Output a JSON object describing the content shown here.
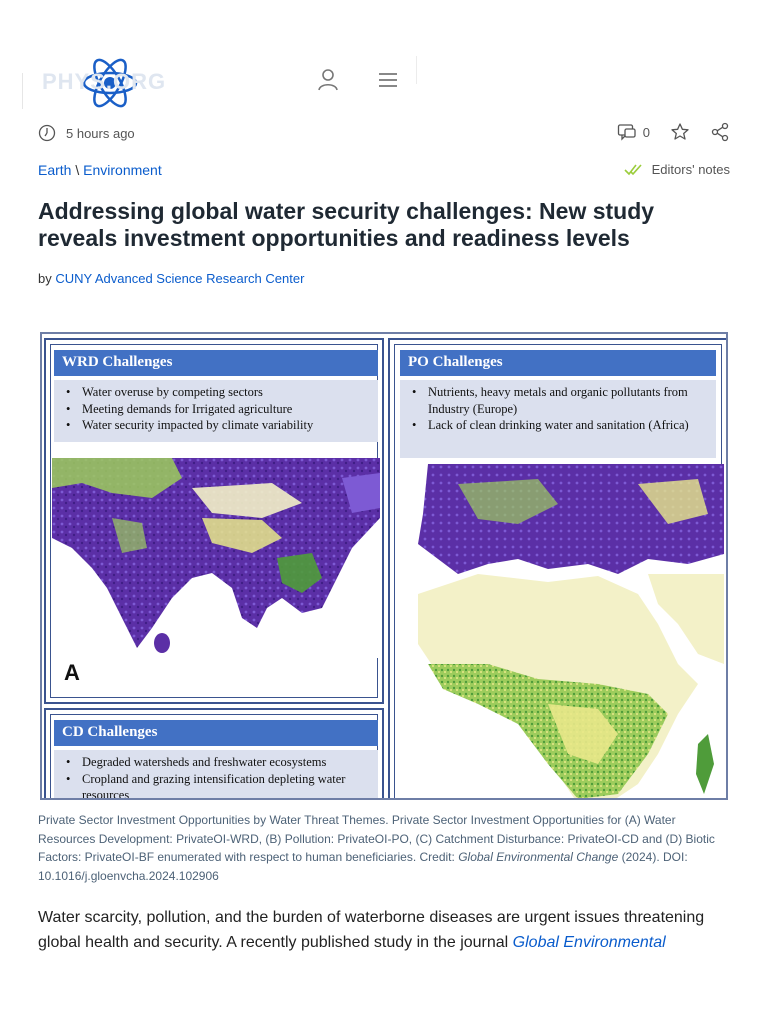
{
  "header": {
    "logo_text": "PHYS.ORG",
    "icons": [
      "user-icon",
      "menu-icon"
    ]
  },
  "meta": {
    "time": "5 hours ago",
    "comments_count": "0",
    "icons": [
      "clock-icon",
      "comment-icon",
      "star-icon",
      "share-icon"
    ]
  },
  "breadcrumb": {
    "category": "Earth",
    "separator": "\\",
    "subcategory": "Environment"
  },
  "editors_notes": "Editors' notes",
  "article": {
    "title": "Addressing global water security challenges: New study reveals investment opportunities and readiness levels",
    "by_label": "by",
    "author": "CUNY Advanced Science Research Center"
  },
  "figure": {
    "panels": [
      {
        "heading": "WRD Challenges",
        "items": [
          "Water overuse by competing sectors",
          "Meeting demands for Irrigated agriculture",
          "Water security impacted by climate variability"
        ],
        "letter": "A"
      },
      {
        "heading": "PO Challenges",
        "items": [
          "Nutrients, heavy metals and organic pollutants from Industry (Europe)",
          "Lack of clean drinking water and sanitation (Africa)"
        ]
      },
      {
        "heading": "CD Challenges",
        "items": [
          "Degraded watersheds and freshwater ecosystems",
          "Cropland and grazing intensification depleting water resources"
        ]
      }
    ],
    "map_colors": {
      "purple": "#5b2fa6",
      "violet": "#7d5ad4",
      "green": "#4f9c3a",
      "lightgreen": "#9dcc5c",
      "yellow": "#e9e88a",
      "pale": "#f3f1c8"
    }
  },
  "caption": {
    "text_1": "Private Sector Investment Opportunities by Water Threat Themes. Private Sector Investment Opportunities for (A) Water Resources Development: PrivateOI-WRD, (B) Pollution: PrivateOI-PO, (C) Catchment Disturbance: PrivateOI-CD and (D) Biotic Factors: PrivateOI-BF enumerated with respect to human beneficiaries. Credit: ",
    "journal": "Global Environmental Change",
    "text_2": " (2024). DOI: 10.1016/j.gloenvcha.2024.102906"
  },
  "body": {
    "text": "Water scarcity, pollution, and the burden of waterborne diseases are urgent issues threatening global health and security. A recently published study in the journal ",
    "link": "Global Environmental"
  }
}
